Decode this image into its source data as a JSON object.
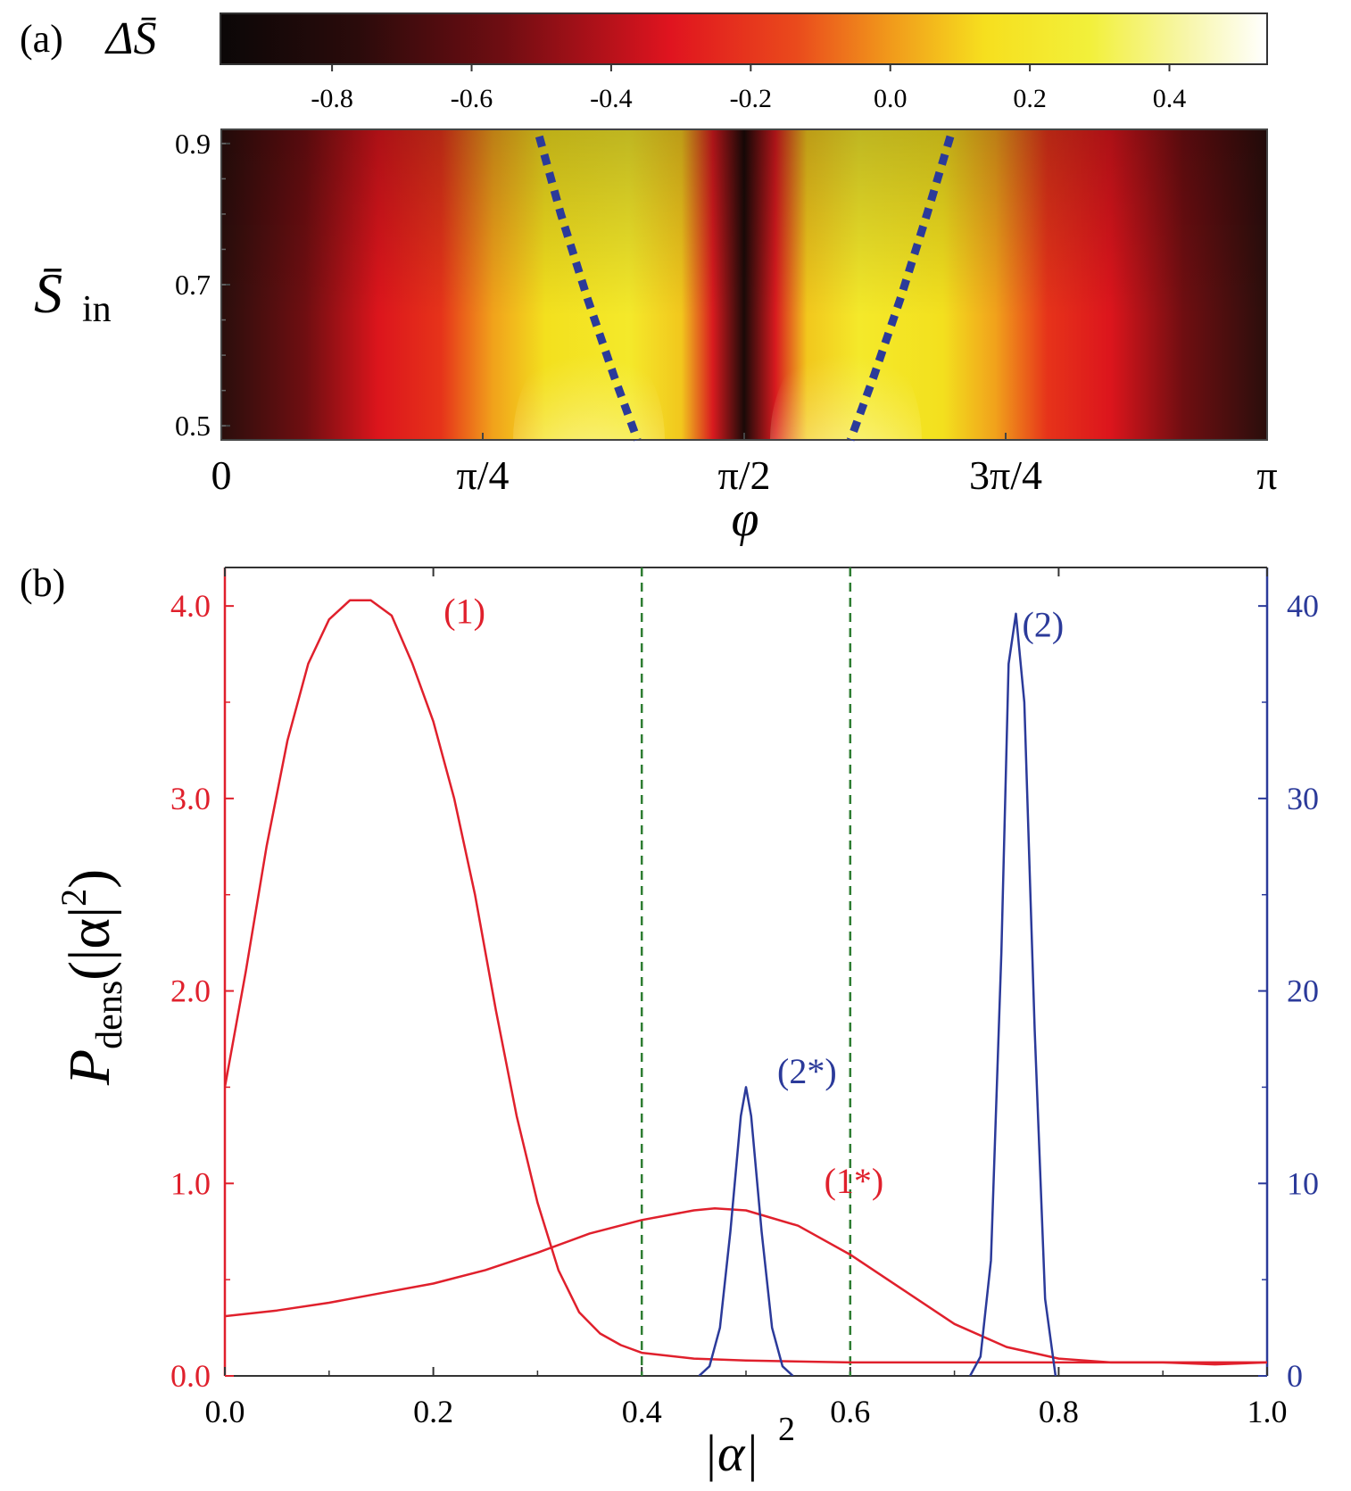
{
  "chart_data": [
    {
      "panel": "(a)",
      "type": "heatmap",
      "colorbar": {
        "label": "ΔS̄",
        "ticks": [
          "-0.8",
          "-0.6",
          "-0.4",
          "-0.2",
          "0.0",
          "0.2",
          "0.4"
        ],
        "tick_values": [
          -0.8,
          -0.6,
          -0.4,
          -0.2,
          0.0,
          0.2,
          0.4
        ],
        "range": [
          -0.96,
          0.54
        ]
      },
      "xlabel": "φ",
      "ylabel": "S̄",
      "ylabel_sub": "in",
      "xlim": [
        0,
        3.14159
      ],
      "ylim": [
        0.48,
        0.92
      ],
      "xticks": [
        "0",
        "π/4",
        "π/2",
        "3π/4",
        "π"
      ],
      "xtick_values": [
        0,
        0.7854,
        1.5708,
        2.3562,
        3.14159
      ],
      "yticks": [
        "0.5",
        "0.7",
        "0.9"
      ],
      "ytick_values": [
        0.5,
        0.7,
        0.9
      ],
      "dotted_curves": [
        {
          "color": "#2b3a9a",
          "points": [
            [
              0.955,
              0.91
            ],
            [
              1.02,
              0.8
            ],
            [
              1.1,
              0.68
            ],
            [
              1.18,
              0.57
            ],
            [
              1.25,
              0.48
            ]
          ]
        },
        {
          "color": "#2b3a9a",
          "points": [
            [
              2.19,
              0.91
            ],
            [
              2.12,
              0.8
            ],
            [
              2.04,
              0.68
            ],
            [
              1.96,
              0.57
            ],
            [
              1.89,
              0.48
            ]
          ]
        }
      ]
    },
    {
      "panel": "(b)",
      "type": "line",
      "xlabel": "|α|",
      "xlabel_sup": "2",
      "ylabel": "P",
      "ylabel_sub": "dens",
      "ylabel_arg": "(|α|",
      "ylabel_arg_sup": "2",
      "ylabel_arg_close": ")",
      "xlim": [
        0.0,
        1.0
      ],
      "ylim_left": [
        0.0,
        4.2
      ],
      "ylim_right": [
        0,
        42
      ],
      "xticks": [
        "0.0",
        "0.2",
        "0.4",
        "0.6",
        "0.8",
        "1.0"
      ],
      "xtick_values": [
        0.0,
        0.2,
        0.4,
        0.6,
        0.8,
        1.0
      ],
      "yticks_left": [
        "0.0",
        "1.0",
        "2.0",
        "3.0",
        "4.0"
      ],
      "ytick_left_values": [
        0.0,
        1.0,
        2.0,
        3.0,
        4.0
      ],
      "yticks_right": [
        "0",
        "10",
        "20",
        "30",
        "40"
      ],
      "ytick_right_values": [
        0,
        10,
        20,
        30,
        40
      ],
      "vlines": [
        0.4,
        0.6
      ],
      "series": [
        {
          "name": "(1)",
          "axis": "left",
          "color": "#e0202c",
          "x": [
            0.0,
            0.02,
            0.04,
            0.06,
            0.08,
            0.1,
            0.12,
            0.14,
            0.16,
            0.18,
            0.2,
            0.22,
            0.24,
            0.26,
            0.28,
            0.3,
            0.32,
            0.34,
            0.36,
            0.38,
            0.4,
            0.45,
            0.5,
            0.6,
            0.7,
            0.8,
            0.9,
            1.0
          ],
          "y": [
            1.5,
            2.1,
            2.75,
            3.3,
            3.7,
            3.93,
            4.03,
            4.03,
            3.95,
            3.7,
            3.4,
            3.0,
            2.5,
            1.9,
            1.35,
            0.9,
            0.55,
            0.33,
            0.22,
            0.16,
            0.12,
            0.09,
            0.08,
            0.07,
            0.07,
            0.07,
            0.07,
            0.07
          ],
          "label_pos": [
            0.21,
            3.91
          ]
        },
        {
          "name": "(1*)",
          "axis": "left",
          "color": "#e0202c",
          "x": [
            0.0,
            0.05,
            0.1,
            0.15,
            0.2,
            0.25,
            0.3,
            0.35,
            0.4,
            0.45,
            0.47,
            0.5,
            0.55,
            0.6,
            0.65,
            0.7,
            0.75,
            0.8,
            0.85,
            0.9,
            0.95,
            1.0
          ],
          "y": [
            0.31,
            0.34,
            0.38,
            0.43,
            0.48,
            0.55,
            0.64,
            0.74,
            0.81,
            0.86,
            0.87,
            0.86,
            0.78,
            0.63,
            0.45,
            0.27,
            0.15,
            0.09,
            0.07,
            0.07,
            0.06,
            0.07
          ],
          "label_pos": [
            0.575,
            0.95
          ]
        },
        {
          "name": "(2*)",
          "axis": "right",
          "color": "#2b3a9a",
          "x": [
            0.455,
            0.465,
            0.475,
            0.485,
            0.495,
            0.5,
            0.505,
            0.515,
            0.525,
            0.535,
            0.545
          ],
          "y": [
            0,
            0.5,
            2.5,
            7.5,
            13.5,
            15.0,
            13.5,
            7.5,
            2.5,
            0.5,
            0
          ],
          "label_pos": [
            0.53,
            15.2
          ]
        },
        {
          "name": "(2)",
          "axis": "right",
          "color": "#2b3a9a",
          "x": [
            0.715,
            0.725,
            0.735,
            0.745,
            0.752,
            0.759,
            0.767,
            0.777,
            0.787,
            0.797
          ],
          "y": [
            0,
            1,
            6,
            22,
            37,
            39.6,
            35,
            18,
            4,
            0
          ],
          "label_pos": [
            0.765,
            38.4
          ]
        }
      ]
    }
  ],
  "panel_labels": {
    "a": "(a)",
    "b": "(b)"
  },
  "colors": {
    "red_axis": "#e0202c",
    "blue_axis": "#2b3a9a",
    "vline": "#2e7d32"
  }
}
